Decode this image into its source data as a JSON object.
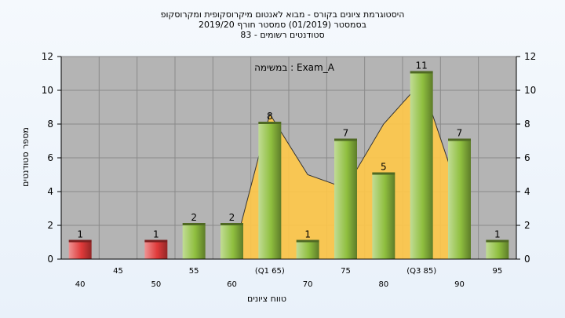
{
  "chart_data": {
    "type": "bar",
    "title_lines": [
      "היסטוגרמת ציונים בקורס - מבוא לאנטום מיקרוסקופית ומקרוסקופ",
      "בסמסטר  (01/2019)  סמסטר חורף 2019/20",
      "83 - סטודנטים רשומים"
    ],
    "annotation": "במשימה : Exam_A",
    "xlabel": "טווח ציונים",
    "ylabel": "מספר סטודנטים",
    "ylim": [
      0,
      12
    ],
    "yticks": [
      0,
      2,
      4,
      6,
      8,
      10,
      12
    ],
    "grid": true,
    "categories": [
      "40",
      "45",
      "50",
      "55",
      "60",
      "(Q1 65)",
      "70",
      "75",
      "80",
      "(Q3 85)",
      "90",
      "95"
    ],
    "values": [
      1,
      0,
      1,
      2,
      2,
      8,
      1,
      7,
      5,
      11,
      7,
      1
    ],
    "data_labels": [
      "1",
      "",
      "1",
      "2",
      "2",
      "8",
      "1",
      "7",
      "5",
      "11",
      "7",
      "1"
    ],
    "bar_colors": [
      "#e03a3a",
      "#e03a3a",
      "#e03a3a",
      "#8fbf3f",
      "#8fbf3f",
      "#8fbf3f",
      "#8fbf3f",
      "#8fbf3f",
      "#8fbf3f",
      "#8fbf3f",
      "#8fbf3f",
      "#8fbf3f"
    ],
    "area_series": {
      "values": [
        null,
        null,
        null,
        null,
        0,
        8.6,
        5,
        4.2,
        8,
        10.5,
        3.8,
        null
      ],
      "color": "#ffc848"
    },
    "colors": {
      "plot_background": "#b4b4b4",
      "grid": "#8a8a8a",
      "line": "#333333"
    }
  }
}
